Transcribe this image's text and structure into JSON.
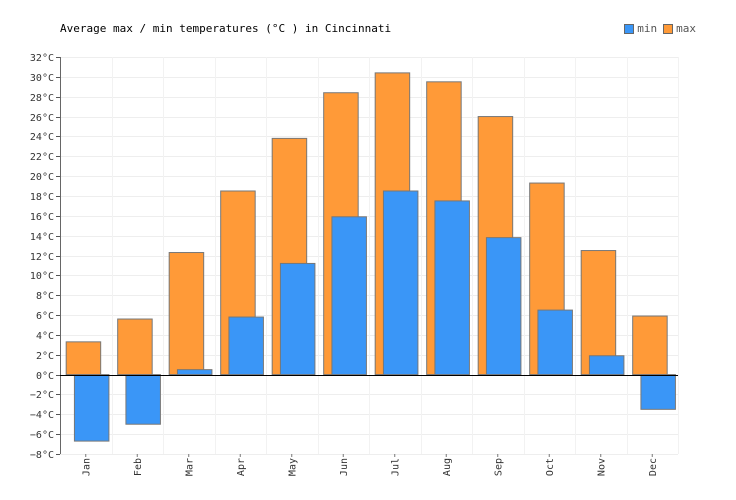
{
  "chart_data": {
    "type": "bar",
    "title": "Average max / min temperatures (°C ) in Cincinnati",
    "categories": [
      "Jan",
      "Feb",
      "Mar",
      "Apr",
      "May",
      "Jun",
      "Jul",
      "Aug",
      "Sep",
      "Oct",
      "Nov",
      "Dec"
    ],
    "series": [
      {
        "name": "min",
        "color": "#3a96f7",
        "values": [
          -6.7,
          -5.0,
          0.5,
          5.8,
          11.2,
          15.9,
          18.5,
          17.5,
          13.8,
          6.5,
          1.9,
          -3.5
        ]
      },
      {
        "name": "max",
        "color": "#ff9a38",
        "values": [
          3.3,
          5.6,
          12.3,
          18.5,
          23.8,
          28.4,
          30.4,
          29.5,
          26.0,
          19.3,
          12.5,
          5.9
        ]
      }
    ],
    "ylim": [
      -8,
      32
    ],
    "ytick_step": 2,
    "ytick_suffix": "°C",
    "grid": true,
    "legend": "top-right"
  }
}
